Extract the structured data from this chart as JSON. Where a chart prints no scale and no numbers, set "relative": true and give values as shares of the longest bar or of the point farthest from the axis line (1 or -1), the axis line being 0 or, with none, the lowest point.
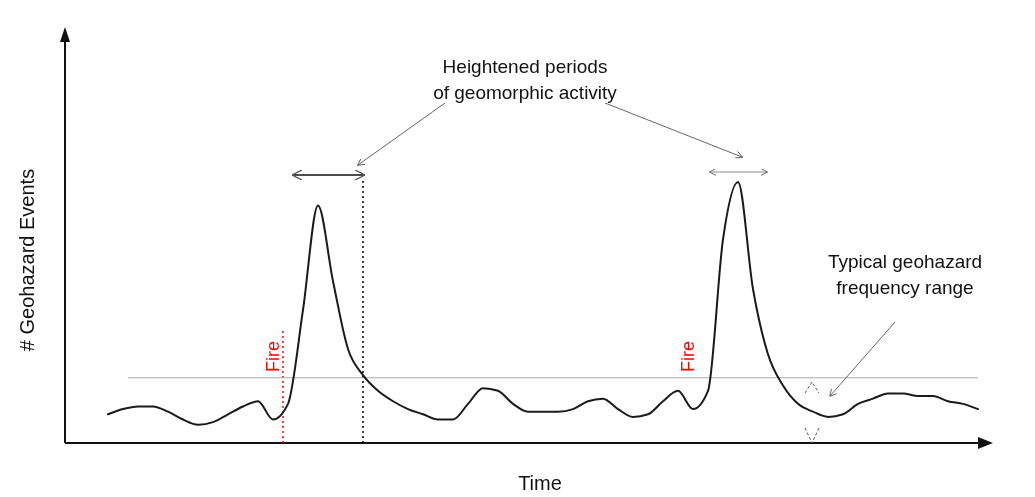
{
  "chart_data": {
    "type": "line",
    "relative": true,
    "xlabel": "Time",
    "ylabel": "# Geohazard Events",
    "categories": [
      null,
      null,
      null,
      null,
      null,
      null,
      null,
      null,
      null,
      null,
      null,
      null,
      null,
      null,
      null,
      null,
      null,
      null,
      null,
      null,
      null,
      null,
      null,
      null,
      null,
      null,
      null,
      null,
      null,
      null,
      null,
      null,
      null,
      null,
      null,
      null,
      null,
      null,
      null,
      null,
      null,
      null,
      null,
      null,
      null,
      null,
      null,
      null,
      null,
      null,
      null,
      null,
      null,
      null,
      null,
      null,
      null,
      null,
      null
    ],
    "series": [
      {
        "color": "#1a1a1a",
        "values": [
          0.11,
          0.13,
          0.14,
          0.14,
          0.12,
          0.09,
          0.07,
          0.08,
          0.11,
          0.14,
          0.16,
          0.09,
          0.15,
          0.51,
          0.91,
          0.62,
          0.36,
          0.26,
          0.2,
          0.16,
          0.13,
          0.11,
          0.09,
          0.09,
          0.15,
          0.21,
          0.2,
          0.15,
          0.12,
          0.12,
          0.12,
          0.13,
          0.16,
          0.17,
          0.13,
          0.1,
          0.11,
          0.16,
          0.2,
          0.13,
          0.2,
          0.78,
          1,
          0.59,
          0.34,
          0.22,
          0.15,
          0.12,
          0.1,
          0.11,
          0.15,
          0.17,
          0.19,
          0.19,
          0.18,
          0.18,
          0.16,
          0.15,
          0.13
        ]
      }
    ],
    "marker": "none",
    "line_style": "solid",
    "ref_lines": [
      {
        "axis": "y",
        "value": 0.25,
        "label": null,
        "color": "#aaaaaa",
        "line_style": "solid"
      }
    ],
    "annotations": [
      "Heightened periods\nof geomorphic activity",
      "Typical geohazard\nfrequency range",
      "Fire",
      "Fire"
    ]
  }
}
